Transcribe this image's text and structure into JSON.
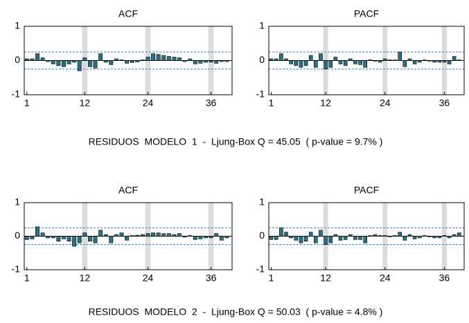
{
  "chart_data": [
    {
      "type": "bar",
      "title": "ACF",
      "color": "#2b7184",
      "x": [
        1,
        2,
        3,
        4,
        5,
        6,
        7,
        8,
        9,
        10,
        11,
        12,
        13,
        14,
        15,
        16,
        17,
        18,
        19,
        20,
        21,
        22,
        23,
        24,
        25,
        26,
        27,
        28,
        29,
        30,
        31,
        32,
        33,
        34,
        35,
        36,
        37,
        38,
        39
      ],
      "values": [
        0.05,
        0.05,
        0.2,
        0.08,
        -0.03,
        -0.1,
        -0.15,
        -0.18,
        -0.1,
        -0.05,
        -0.3,
        0.08,
        -0.18,
        -0.22,
        0.2,
        -0.05,
        -0.12,
        0.05,
        0.02,
        -0.08,
        -0.06,
        -0.04,
        0.02,
        0.1,
        0.2,
        0.18,
        0.15,
        0.12,
        0.1,
        0.08,
        -0.03,
        0.05,
        -0.1,
        -0.08,
        -0.05,
        -0.05,
        -0.08,
        -0.03,
        -0.03
      ],
      "xlim": [
        0.5,
        40
      ],
      "ylim": [
        -1,
        1
      ],
      "xticks": [
        1,
        12,
        24,
        36
      ],
      "yticks": [
        -1,
        0,
        1
      ],
      "confidence_limits": [
        -0.25,
        0.25
      ],
      "seasonal_lags": [
        12,
        24,
        36
      ]
    },
    {
      "type": "bar",
      "title": "PACF",
      "color": "#2b7184",
      "x": [
        1,
        2,
        3,
        4,
        5,
        6,
        7,
        8,
        9,
        10,
        11,
        12,
        13,
        14,
        15,
        16,
        17,
        18,
        19,
        20,
        21,
        22,
        23,
        24,
        25,
        26,
        27,
        28,
        29,
        30,
        31,
        32,
        33,
        34,
        35,
        36,
        37,
        38,
        39
      ],
      "values": [
        0.05,
        0.05,
        0.2,
        0.05,
        -0.1,
        -0.15,
        -0.2,
        -0.15,
        0.15,
        -0.2,
        0.2,
        -0.25,
        -0.2,
        0.1,
        -0.1,
        -0.15,
        0.05,
        -0.1,
        -0.12,
        -0.2,
        0.02,
        -0.02,
        -0.05,
        0.05,
        0.02,
        0.02,
        0.25,
        -0.18,
        0.05,
        -0.1,
        -0.05,
        0.02,
        -0.02,
        -0.05,
        -0.05,
        -0.05,
        -0.1,
        0.12,
        0.02
      ],
      "xlim": [
        0.5,
        40
      ],
      "ylim": [
        -1,
        1
      ],
      "xticks": [
        1,
        12,
        24,
        36
      ],
      "yticks": [
        -1,
        0,
        1
      ],
      "confidence_limits": [
        -0.25,
        0.25
      ],
      "seasonal_lags": [
        12,
        24,
        36
      ]
    },
    {
      "type": "bar",
      "title": "ACF",
      "color": "#2b7184",
      "x": [
        1,
        2,
        3,
        4,
        5,
        6,
        7,
        8,
        9,
        10,
        11,
        12,
        13,
        14,
        15,
        16,
        17,
        18,
        19,
        20,
        21,
        22,
        23,
        24,
        25,
        26,
        27,
        28,
        29,
        30,
        31,
        32,
        33,
        34,
        35,
        36,
        37,
        38,
        39
      ],
      "values": [
        -0.1,
        -0.08,
        0.28,
        0.1,
        -0.05,
        -0.05,
        -0.15,
        -0.08,
        -0.15,
        -0.3,
        -0.2,
        0.1,
        -0.15,
        -0.2,
        0.18,
        0.05,
        -0.2,
        0.05,
        0.1,
        -0.12,
        0.02,
        0.03,
        0.05,
        0.08,
        0.1,
        0.1,
        0.08,
        0.08,
        0.05,
        0.08,
        -0.03,
        0.02,
        -0.1,
        -0.08,
        -0.05,
        -0.05,
        0.08,
        -0.12,
        -0.05
      ],
      "xlim": [
        0.5,
        40
      ],
      "ylim": [
        -1,
        1
      ],
      "xticks": [
        1,
        12,
        24,
        36
      ],
      "yticks": [
        -1,
        0,
        1
      ],
      "confidence_limits": [
        -0.25,
        0.25
      ],
      "seasonal_lags": [
        12,
        24,
        36
      ]
    },
    {
      "type": "bar",
      "title": "PACF",
      "color": "#2b7184",
      "x": [
        1,
        2,
        3,
        4,
        5,
        6,
        7,
        8,
        9,
        10,
        11,
        12,
        13,
        14,
        15,
        16,
        17,
        18,
        19,
        20,
        21,
        22,
        23,
        24,
        25,
        26,
        27,
        28,
        29,
        30,
        31,
        32,
        33,
        34,
        35,
        36,
        37,
        38,
        39
      ],
      "values": [
        -0.1,
        -0.1,
        0.25,
        0.12,
        -0.05,
        -0.12,
        -0.2,
        -0.15,
        0.12,
        -0.2,
        0.18,
        -0.25,
        -0.2,
        0.05,
        -0.12,
        -0.1,
        0.05,
        -0.1,
        -0.1,
        -0.2,
        0.02,
        0.05,
        0.02,
        0.02,
        -0.02,
        0.02,
        0.12,
        -0.12,
        0.05,
        -0.08,
        -0.05,
        0.02,
        -0.02,
        -0.05,
        -0.05,
        0.02,
        -0.05,
        0.05,
        0.1
      ],
      "xlim": [
        0.5,
        40
      ],
      "ylim": [
        -1,
        1
      ],
      "xticks": [
        1,
        12,
        24,
        36
      ],
      "yticks": [
        -1,
        0,
        1
      ],
      "confidence_limits": [
        -0.25,
        0.25
      ],
      "seasonal_lags": [
        12,
        24,
        36
      ]
    }
  ],
  "captions": [
    "RESIDUOS  MODELO  1  -  Ljung-Box Q = 45.05  ( p-value = 9.7% )",
    "RESIDUOS  MODELO  2  -  Ljung-Box Q = 50.03  ( p-value = 4.8% )"
  ]
}
